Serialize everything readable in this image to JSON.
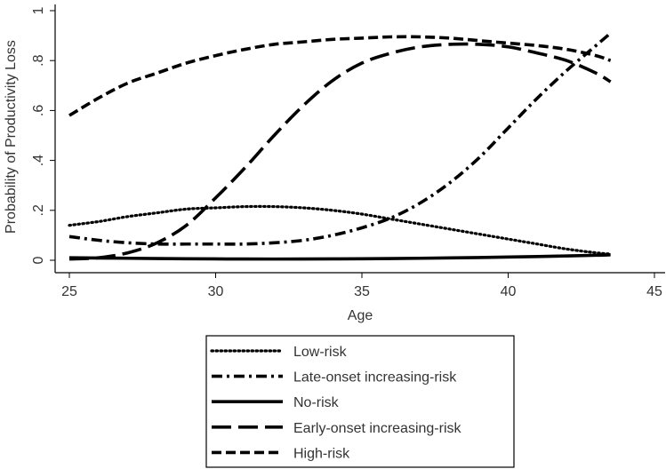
{
  "chart_data": {
    "type": "line",
    "title": "",
    "xlabel": "Age",
    "ylabel": "Probability of Productivity Loss",
    "xlim": [
      25,
      45
    ],
    "ylim": [
      0,
      1
    ],
    "grid": false,
    "x_ticks": [
      25,
      30,
      35,
      40,
      45
    ],
    "x_tick_labels": [
      "25",
      "30",
      "35",
      "40",
      "45"
    ],
    "y_ticks": [
      0,
      0.2,
      0.4,
      0.6,
      0.8,
      1
    ],
    "y_tick_labels": [
      "0",
      ".2",
      ".4",
      ".6",
      ".8",
      "1"
    ],
    "legend_position": "bottom",
    "series": [
      {
        "name": "Low-risk",
        "style": "dotted",
        "x": [
          25,
          26,
          27,
          28,
          29,
          30,
          31,
          32,
          33,
          34,
          35,
          36,
          37,
          38,
          39,
          40,
          41,
          42,
          43,
          43.5
        ],
        "values": [
          0.14,
          0.155,
          0.175,
          0.19,
          0.205,
          0.21,
          0.215,
          0.215,
          0.21,
          0.2,
          0.185,
          0.165,
          0.145,
          0.125,
          0.105,
          0.085,
          0.065,
          0.045,
          0.03,
          0.025
        ]
      },
      {
        "name": "Late-onset increasing-risk",
        "style": "dashdot",
        "x": [
          25,
          26,
          27,
          28,
          29,
          30,
          31,
          32,
          33,
          34,
          35,
          36,
          37,
          38,
          39,
          40,
          41,
          42,
          43,
          43.5
        ],
        "values": [
          0.095,
          0.08,
          0.07,
          0.065,
          0.065,
          0.065,
          0.065,
          0.07,
          0.08,
          0.1,
          0.13,
          0.17,
          0.23,
          0.31,
          0.41,
          0.53,
          0.65,
          0.76,
          0.86,
          0.91
        ]
      },
      {
        "name": "No-risk",
        "style": "solid",
        "x": [
          25,
          27,
          29,
          31,
          33,
          35,
          37,
          39,
          41,
          43,
          43.5
        ],
        "values": [
          0.01,
          0.008,
          0.006,
          0.005,
          0.005,
          0.006,
          0.008,
          0.011,
          0.015,
          0.02,
          0.022
        ]
      },
      {
        "name": "Early-onset increasing-risk",
        "style": "longdash",
        "x": [
          25,
          26,
          27,
          28,
          29,
          30,
          31,
          32,
          33,
          34,
          35,
          36,
          37,
          38,
          39,
          40,
          41,
          42,
          43,
          43.5
        ],
        "values": [
          0.005,
          0.01,
          0.03,
          0.07,
          0.14,
          0.25,
          0.37,
          0.5,
          0.62,
          0.72,
          0.79,
          0.83,
          0.855,
          0.865,
          0.865,
          0.855,
          0.83,
          0.8,
          0.75,
          0.715
        ]
      },
      {
        "name": "High-risk",
        "style": "dashed",
        "x": [
          25,
          26,
          27,
          28,
          29,
          30,
          31,
          32,
          33,
          34,
          35,
          36,
          37,
          38,
          39,
          40,
          41,
          42,
          43,
          43.5
        ],
        "values": [
          0.58,
          0.65,
          0.71,
          0.75,
          0.79,
          0.82,
          0.845,
          0.865,
          0.875,
          0.885,
          0.89,
          0.895,
          0.895,
          0.89,
          0.88,
          0.87,
          0.86,
          0.845,
          0.82,
          0.8
        ]
      }
    ]
  }
}
